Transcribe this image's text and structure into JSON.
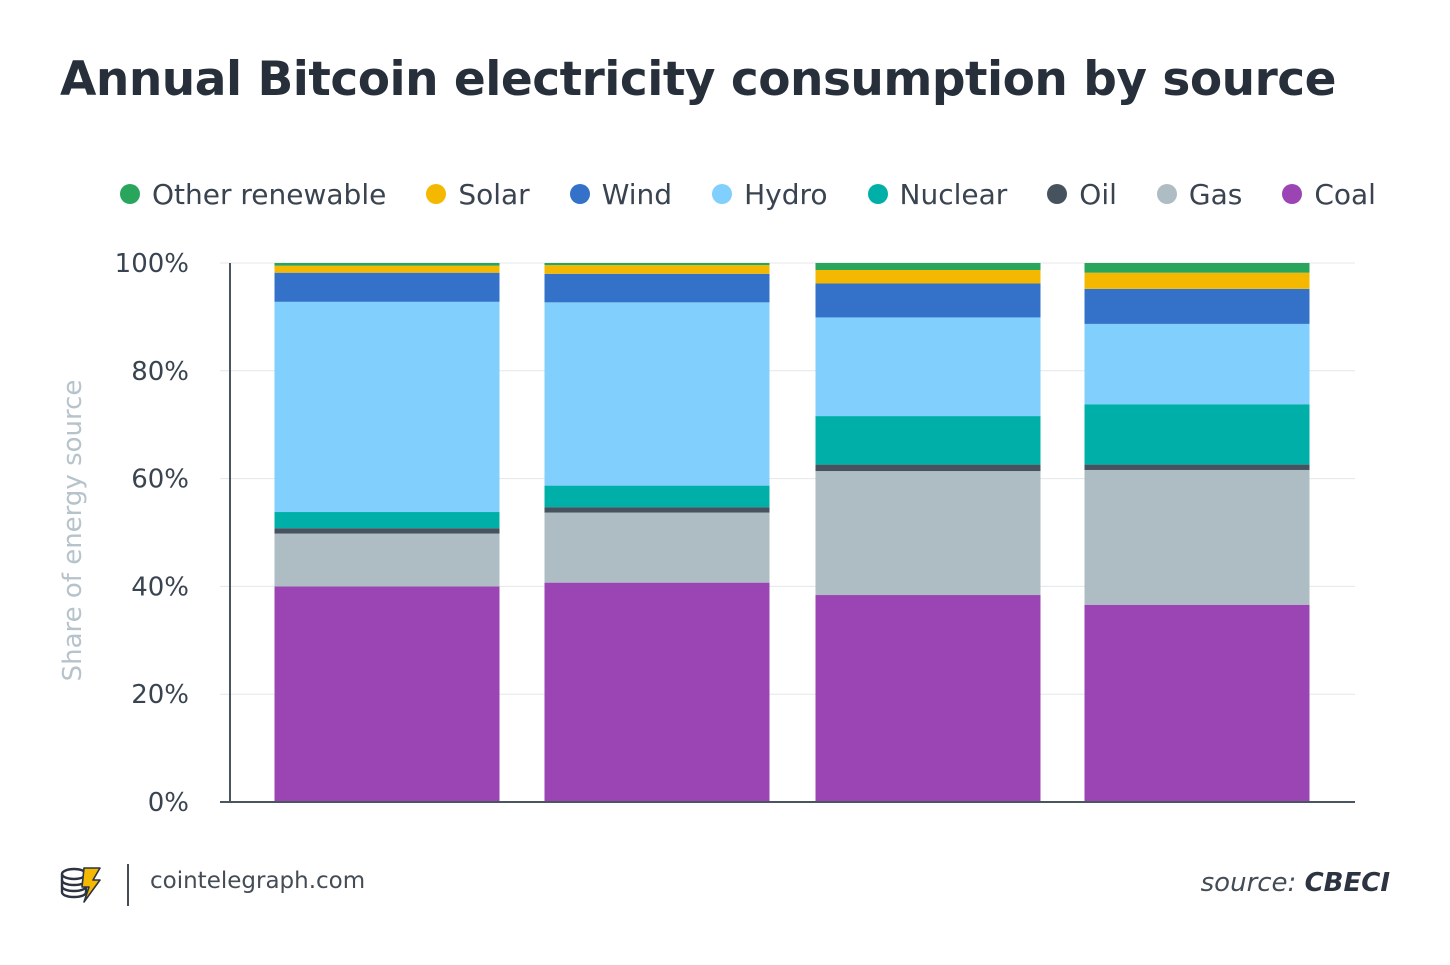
{
  "title": "Annual Bitcoin electricity consumption by source",
  "footer": {
    "site": "cointelegraph.com",
    "source_prefix": "source:",
    "source_name": "CBECI"
  },
  "chart_data": {
    "type": "bar",
    "stacked": true,
    "title": "Annual Bitcoin electricity consumption by source",
    "xlabel": "",
    "ylabel": "Share of energy source",
    "ylim": [
      0,
      100
    ],
    "yticks": [
      "0%",
      "20%",
      "40%",
      "60%",
      "80%",
      "100%"
    ],
    "grid": true,
    "legend_position": "top",
    "categories": [
      "",
      "",
      "",
      ""
    ],
    "series": [
      {
        "name": "Coal",
        "color": "#9b45b5",
        "values": [
          40.0,
          40.7,
          38.4,
          36.6
        ]
      },
      {
        "name": "Gas",
        "color": "#aebcc4",
        "values": [
          9.8,
          13.0,
          23.0,
          25.0
        ]
      },
      {
        "name": "Oil",
        "color": "#46535e",
        "values": [
          1.0,
          1.0,
          1.2,
          1.0
        ]
      },
      {
        "name": "Nuclear",
        "color": "#00b0a8",
        "values": [
          3.0,
          4.0,
          9.0,
          11.2
        ]
      },
      {
        "name": "Hydro",
        "color": "#80cffc",
        "values": [
          39.0,
          34.0,
          18.3,
          14.9
        ]
      },
      {
        "name": "Wind",
        "color": "#3372c8",
        "values": [
          5.4,
          5.3,
          6.3,
          6.5
        ]
      },
      {
        "name": "Solar",
        "color": "#f5b800",
        "values": [
          1.3,
          1.6,
          2.5,
          3.0
        ]
      },
      {
        "name": "Other renewable",
        "color": "#2aa55c",
        "values": [
          0.5,
          0.4,
          1.3,
          1.8
        ]
      }
    ],
    "legend_order": [
      "Other renewable",
      "Solar",
      "Wind",
      "Hydro",
      "Nuclear",
      "Oil",
      "Gas",
      "Coal"
    ]
  }
}
